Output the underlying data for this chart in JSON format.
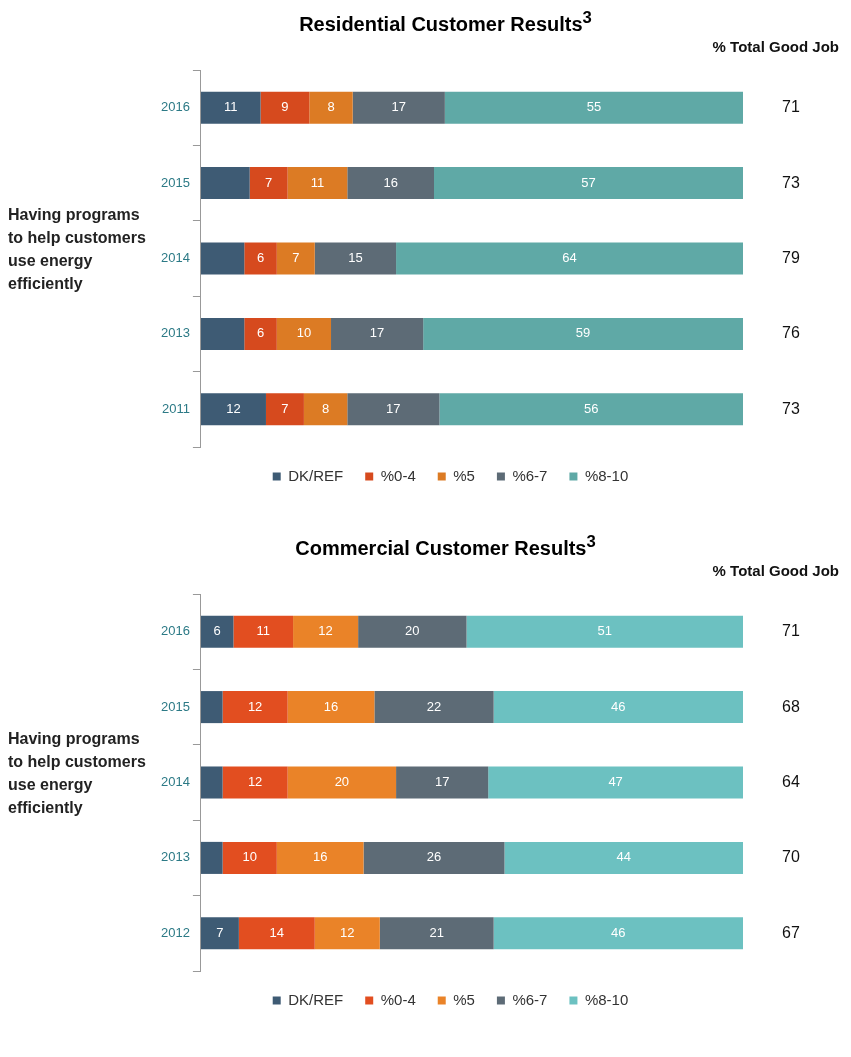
{
  "chart_data": [
    {
      "type": "bar",
      "orientation": "horizontal",
      "stacked": true,
      "title": "Residential Customer Results$^{3}$",
      "ylabel": "Having programs to help customers use energy efficiently",
      "categories": [
        "2016",
        "2015",
        "2014",
        "2013",
        "2011"
      ],
      "xlim": [
        0,
        100
      ],
      "tick_labels": "y",
      "legend": "bottom",
      "marker": "square",
      "series": [
        {
          "name": "DK/REF",
          "color": "#3e5b74",
          "values": [
            11,
            9,
            8,
            8,
            12
          ],
          "value_labels": [
            "11",
            null,
            null,
            null,
            "12"
          ]
        },
        {
          "name": "%0-4",
          "color": "#d64a1e",
          "values": [
            9,
            7,
            6,
            6,
            7
          ],
          "value_labels": [
            "9",
            "7",
            "6",
            "6",
            "7"
          ]
        },
        {
          "name": "%5",
          "color": "#dc7b24",
          "values": [
            8,
            11,
            7,
            10,
            8
          ],
          "value_labels": [
            "8",
            "11",
            "7",
            "10",
            "8"
          ]
        },
        {
          "name": "%6-7",
          "color": "#5d6b76",
          "values": [
            17,
            16,
            15,
            17,
            17
          ],
          "value_labels": [
            "17",
            "16",
            "15",
            "17",
            "17"
          ]
        },
        {
          "name": "%8-10",
          "color": "#5fa9a6",
          "values": [
            55,
            57,
            64,
            59,
            56
          ],
          "value_labels": [
            "55",
            "57",
            "64",
            "59",
            "56"
          ]
        }
      ],
      "annotations": [
        "% Total Good Job",
        "71",
        "73",
        "79",
        "76",
        "73"
      ]
    },
    {
      "type": "bar",
      "orientation": "horizontal",
      "stacked": true,
      "title": "Commercial Customer Results$^{3}$",
      "ylabel": "Having programs to help customers use energy efficiently",
      "categories": [
        "2016",
        "2015",
        "2014",
        "2013",
        "2012"
      ],
      "xlim": [
        0,
        100
      ],
      "tick_labels": "y",
      "legend": "bottom",
      "marker": "square",
      "series": [
        {
          "name": "DK/REF",
          "color": "#3e5b74",
          "values": [
            6,
            4,
            4,
            4,
            7
          ],
          "value_labels": [
            "6",
            null,
            null,
            null,
            "7"
          ]
        },
        {
          "name": "%0-4",
          "color": "#e24e20",
          "values": [
            11,
            12,
            12,
            10,
            14
          ],
          "value_labels": [
            "11",
            "12",
            "12",
            "10",
            "14"
          ]
        },
        {
          "name": "%5",
          "color": "#ea8328",
          "values": [
            12,
            16,
            20,
            16,
            12
          ],
          "value_labels": [
            "12",
            "16",
            "20",
            "16",
            "12"
          ]
        },
        {
          "name": "%6-7",
          "color": "#5d6b76",
          "values": [
            20,
            22,
            17,
            26,
            21
          ],
          "value_labels": [
            "20",
            "22",
            "17",
            "26",
            "21"
          ]
        },
        {
          "name": "%8-10",
          "color": "#6cc1c1",
          "values": [
            51,
            46,
            47,
            44,
            46
          ],
          "value_labels": [
            "51",
            "46",
            "47",
            "44",
            "46"
          ]
        }
      ],
      "annotations": [
        "% Total Good Job",
        "71",
        "68",
        "64",
        "70",
        "67"
      ]
    }
  ]
}
